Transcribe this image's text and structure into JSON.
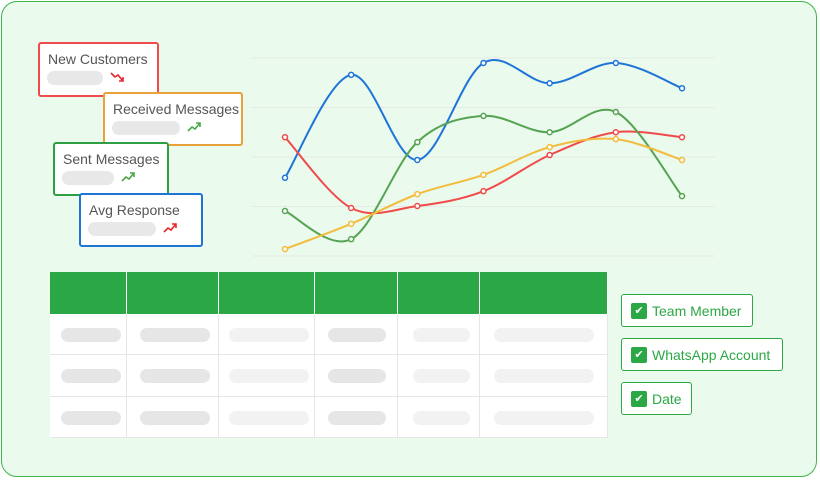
{
  "cards": [
    {
      "title": "New Customers",
      "color": "#f04a4a",
      "trend": "trend-down-icon",
      "trend_color": "#e8262a"
    },
    {
      "title": "Received Messages",
      "color": "#e8a23a",
      "trend": "trend-up-icon",
      "trend_color": "#4aa84a"
    },
    {
      "title": "Sent Messages",
      "color": "#2ea043",
      "trend": "trend-up-icon",
      "trend_color": "#4aa84a"
    },
    {
      "title": "Avg Response",
      "color": "#1f74d8",
      "trend": "trend-up-icon",
      "trend_color": "#e8262a"
    }
  ],
  "chart_data": {
    "type": "line",
    "x": [
      1,
      2,
      3,
      4,
      5,
      6,
      7
    ],
    "ylim": [
      0,
      4
    ],
    "grid": true,
    "smooth": true,
    "series": [
      {
        "color": "#1f74d8",
        "values": [
          1.58,
          3.66,
          1.94,
          3.9,
          3.49,
          3.9,
          3.39
        ]
      },
      {
        "color": "#f04a4a",
        "values": [
          2.4,
          0.97,
          1.01,
          1.31,
          2.04,
          2.5,
          2.4
        ]
      },
      {
        "color": "#56a351",
        "values": [
          0.91,
          0.34,
          2.3,
          2.83,
          2.5,
          2.91,
          1.21
        ]
      },
      {
        "color": "#f2bc3c",
        "values": [
          0.14,
          0.65,
          1.25,
          1.64,
          2.2,
          2.36,
          1.94
        ]
      }
    ]
  },
  "table": {
    "header_color": "#2ba845",
    "columns": 6,
    "rows": 3
  },
  "filters": [
    {
      "label": "Team Member",
      "checked": true
    },
    {
      "label": "WhatsApp Account",
      "checked": true
    },
    {
      "label": "Date",
      "checked": true
    }
  ]
}
